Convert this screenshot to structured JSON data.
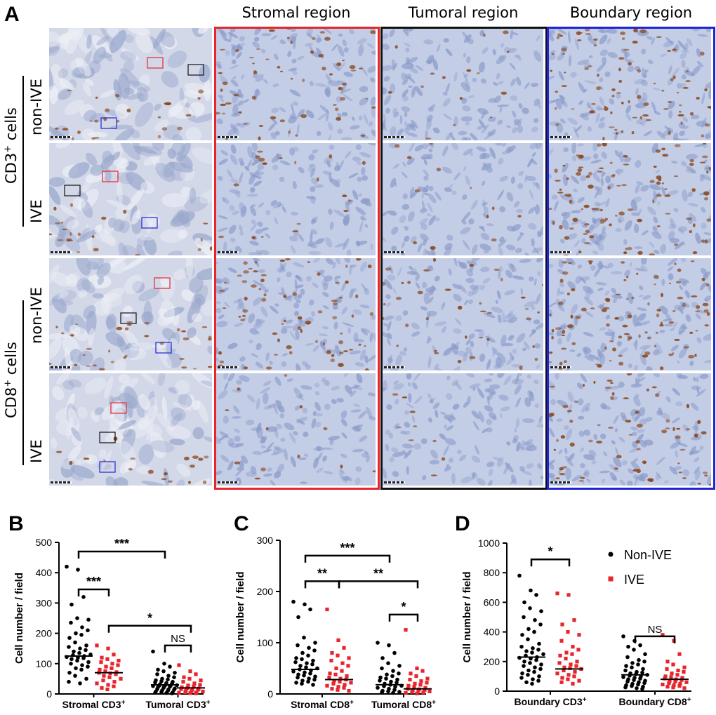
{
  "panel_a": {
    "letter": "A",
    "columns": [
      "Stromal region",
      "Tumoral region",
      "Boundary region"
    ],
    "marker_groups": [
      {
        "marker": "CD3",
        "superscript": "+",
        "suffix": " cells",
        "rows": [
          "non-IVE",
          "IVE"
        ]
      },
      {
        "marker": "CD8",
        "superscript": "+",
        "suffix": " cells",
        "rows": [
          "non-IVE",
          "IVE"
        ]
      }
    ],
    "frame_colors": {
      "stromal": "#e8242c",
      "tumoral": "#111111",
      "boundary": "#1f24d6"
    },
    "stain_colors": {
      "hematoxylin": "#a9b6d6",
      "dab": "#8b4a1f"
    }
  },
  "legend": {
    "items": [
      {
        "label": "Non-IVE",
        "color": "#000000",
        "marker": "circle"
      },
      {
        "label": "IVE",
        "color": "#e8242c",
        "marker": "square"
      }
    ]
  },
  "chart_data": [
    {
      "panel": "B",
      "type": "scatter",
      "ylabel": "Cell number / field",
      "ylim": [
        0,
        500
      ],
      "yticks": [
        0,
        100,
        200,
        300,
        400,
        500
      ],
      "categories": [
        "Stromal CD3",
        "Tumoral CD3"
      ],
      "category_sup": "+",
      "series": [
        {
          "name": "Non-IVE",
          "color": "#000000",
          "marker": "circle",
          "groups": [
            {
              "category": "Stromal CD3",
              "median": 125,
              "values": [
                420,
                410,
                320,
                295,
                250,
                245,
                235,
                220,
                210,
                200,
                195,
                185,
                170,
                160,
                155,
                150,
                145,
                140,
                135,
                130,
                128,
                125,
                122,
                120,
                118,
                115,
                110,
                105,
                100,
                95,
                90,
                85,
                80,
                70,
                60,
                50,
                40,
                35
              ]
            },
            {
              "category": "Tumoral CD3",
              "median": 30,
              "values": [
                140,
                100,
                90,
                80,
                75,
                70,
                65,
                60,
                55,
                50,
                48,
                45,
                42,
                40,
                38,
                36,
                34,
                32,
                30,
                29,
                28,
                27,
                26,
                25,
                24,
                22,
                20,
                18,
                16,
                15,
                14,
                12,
                10,
                8,
                6,
                5,
                4,
                3,
                2
              ]
            }
          ]
        },
        {
          "name": "IVE",
          "color": "#e8242c",
          "marker": "square",
          "groups": [
            {
              "category": "Stromal CD3",
              "median": 70,
              "values": [
                160,
                150,
                130,
                120,
                115,
                110,
                105,
                100,
                95,
                90,
                85,
                80,
                75,
                72,
                70,
                68,
                65,
                60,
                55,
                50,
                45,
                40,
                35,
                30,
                25,
                20,
                15
              ]
            },
            {
              "category": "Tumoral CD3",
              "median": 20,
              "values": [
                95,
                75,
                65,
                55,
                50,
                45,
                40,
                35,
                30,
                28,
                25,
                22,
                20,
                18,
                16,
                15,
                14,
                12,
                10,
                8,
                6,
                5,
                4,
                3,
                2
              ]
            }
          ]
        }
      ],
      "significance": [
        {
          "label": "***",
          "from": [
            0,
            0
          ],
          "to": [
            1,
            0
          ],
          "y": 470
        },
        {
          "label": "***",
          "from": [
            0,
            0
          ],
          "to": [
            0,
            1
          ],
          "y": 345
        },
        {
          "label": "*",
          "from": [
            0,
            1
          ],
          "to": [
            1,
            1
          ],
          "y": 225
        },
        {
          "label": "NS",
          "from": [
            1,
            0
          ],
          "to": [
            1,
            1
          ],
          "y": 160
        }
      ]
    },
    {
      "panel": "C",
      "type": "scatter",
      "ylabel": "Cell number / field",
      "ylim": [
        0,
        300
      ],
      "yticks": [
        0,
        100,
        200,
        300
      ],
      "categories": [
        "Stromal CD8",
        "Tumoral CD8"
      ],
      "category_sup": "+",
      "series": [
        {
          "name": "Non-IVE",
          "color": "#000000",
          "marker": "circle",
          "groups": [
            {
              "category": "Stromal CD8",
              "median": 48,
              "values": [
                180,
                175,
                165,
                150,
                110,
                100,
                95,
                90,
                85,
                80,
                75,
                70,
                68,
                65,
                62,
                60,
                58,
                55,
                52,
                50,
                48,
                46,
                44,
                42,
                40,
                38,
                36,
                34,
                32,
                30,
                28,
                26,
                24,
                22,
                20,
                18
              ]
            },
            {
              "category": "Tumoral CD8",
              "median": 18,
              "values": [
                100,
                95,
                80,
                70,
                60,
                55,
                50,
                45,
                40,
                38,
                35,
                32,
                30,
                28,
                26,
                24,
                22,
                20,
                18,
                16,
                15,
                14,
                12,
                10,
                8,
                6,
                5,
                4,
                3,
                2
              ]
            }
          ]
        },
        {
          "name": "IVE",
          "color": "#e8242c",
          "marker": "square",
          "groups": [
            {
              "category": "Stromal CD8",
              "median": 28,
              "values": [
                165,
                105,
                90,
                80,
                75,
                70,
                65,
                60,
                55,
                50,
                45,
                40,
                38,
                35,
                32,
                30,
                28,
                26,
                24,
                22,
                20,
                18,
                16,
                14,
                12,
                10,
                8,
                6
              ]
            },
            {
              "category": "Tumoral CD8",
              "median": 10,
              "values": [
                125,
                50,
                45,
                40,
                35,
                30,
                28,
                25,
                22,
                20,
                18,
                16,
                14,
                12,
                10,
                9,
                8,
                7,
                6,
                5,
                4,
                3,
                2,
                1
              ]
            }
          ]
        }
      ],
      "significance": [
        {
          "label": "***",
          "from": [
            0,
            0
          ],
          "to": [
            1,
            0
          ],
          "y": 270
        },
        {
          "label": "**",
          "from": [
            0,
            0
          ],
          "to": [
            0,
            1
          ],
          "y": 220
        },
        {
          "label": "**",
          "from": [
            0,
            1
          ],
          "to": [
            1,
            1
          ],
          "y": 220
        },
        {
          "label": "*",
          "from": [
            1,
            0
          ],
          "to": [
            1,
            1
          ],
          "y": 155
        }
      ]
    },
    {
      "panel": "D",
      "type": "scatter",
      "ylabel": "Cell number / field",
      "ylim": [
        0,
        1000
      ],
      "yticks": [
        0,
        200,
        400,
        600,
        800,
        1000
      ],
      "categories": [
        "Boundary CD3",
        "Boundary CD8"
      ],
      "category_sup": "+",
      "series": [
        {
          "name": "Non-IVE",
          "color": "#000000",
          "marker": "circle",
          "groups": [
            {
              "category": "Boundary CD3",
              "median": 230,
              "values": [
                780,
                680,
                650,
                600,
                560,
                540,
                500,
                480,
                450,
                420,
                400,
                380,
                350,
                320,
                300,
                290,
                280,
                270,
                260,
                250,
                240,
                230,
                225,
                220,
                210,
                200,
                190,
                180,
                170,
                160,
                150,
                140,
                130,
                120,
                110,
                100,
                90,
                80,
                70,
                60,
                50
              ]
            },
            {
              "category": "Boundary CD8",
              "median": 110,
              "values": [
                370,
                340,
                310,
                300,
                280,
                250,
                230,
                210,
                200,
                190,
                180,
                170,
                160,
                150,
                140,
                130,
                125,
                120,
                115,
                110,
                105,
                100,
                95,
                90,
                85,
                80,
                75,
                70,
                65,
                60,
                55,
                50,
                45,
                40,
                35,
                30,
                25,
                20,
                15
              ]
            }
          ]
        },
        {
          "name": "IVE",
          "color": "#e8242c",
          "marker": "square",
          "groups": [
            {
              "category": "Boundary CD3",
              "median": 150,
              "values": [
                660,
                650,
                480,
                450,
                400,
                380,
                340,
                300,
                280,
                260,
                250,
                240,
                220,
                200,
                190,
                180,
                170,
                160,
                155,
                150,
                140,
                130,
                120,
                110,
                100,
                90,
                80,
                70,
                60,
                50
              ]
            },
            {
              "category": "Boundary CD8",
              "median": 80,
              "values": [
                380,
                340,
                250,
                200,
                180,
                160,
                150,
                140,
                130,
                120,
                110,
                100,
                95,
                90,
                85,
                80,
                75,
                70,
                65,
                60,
                55,
                50,
                45,
                40,
                35,
                30,
                25,
                20
              ]
            }
          ]
        }
      ],
      "significance": [
        {
          "label": "*",
          "from": [
            0,
            0
          ],
          "to": [
            0,
            1
          ],
          "y": 890
        },
        {
          "label": "NS",
          "from": [
            1,
            0
          ],
          "to": [
            1,
            1
          ],
          "y": 370
        }
      ]
    }
  ]
}
